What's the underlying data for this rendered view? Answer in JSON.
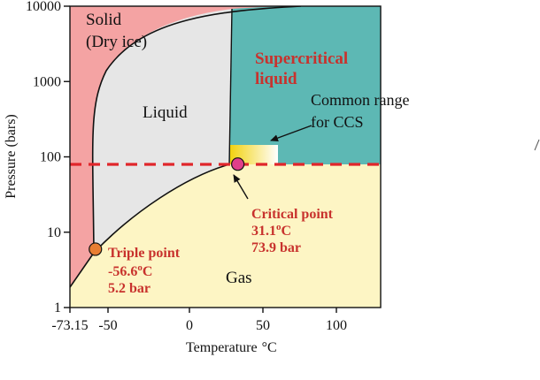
{
  "axes": {
    "x_label": "Temperature",
    "x_unit": "°C",
    "y_label": "Pressure (bars)",
    "x_ticks": [
      {
        "value": -73.15,
        "label": "-73.15"
      },
      {
        "value": -50,
        "label": "-50"
      },
      {
        "value": 0,
        "label": "0"
      },
      {
        "value": 50,
        "label": "50"
      },
      {
        "value": 100,
        "label": "100"
      }
    ],
    "y_ticks": [
      {
        "value": 1,
        "label": "1"
      },
      {
        "value": 10,
        "label": "10"
      },
      {
        "value": 100,
        "label": "100"
      },
      {
        "value": 1000,
        "label": "1000"
      },
      {
        "value": 10000,
        "label": "10000"
      }
    ],
    "y_scale": "log",
    "x_range": [
      -73.15,
      125
    ],
    "y_range": [
      1,
      10000
    ]
  },
  "regions": {
    "solid_line1": "Solid",
    "solid_line2": "(Dry ice)",
    "liquid": "Liquid",
    "gas": "Gas",
    "supercritical_line1": "Supercritical",
    "supercritical_line2": "liquid"
  },
  "ccs": {
    "line1": "Common range",
    "line2": "for CCS"
  },
  "triple_point": {
    "temperature": -56.6,
    "pressure": 5.2,
    "title": "Triple point",
    "temp_text": "-56.6",
    "deg_text": "o",
    "temp_unit": "C",
    "pressure_text": "5.2 bar"
  },
  "critical_point": {
    "temperature": 31.1,
    "pressure": 73.9,
    "title": "Critical point",
    "temp_text": "31.1",
    "deg_text": "o",
    "temp_unit": "C",
    "pressure_text": "73.9 bar"
  },
  "colors": {
    "solid": "#f4a3a3",
    "liquid": "#e6e6e6",
    "gas": "#fdf5c4",
    "supercritical": "#5db8b4",
    "dashed_line": "#e0262b",
    "triple_marker": "#e97e32",
    "critical_marker": "#e03f8a"
  }
}
